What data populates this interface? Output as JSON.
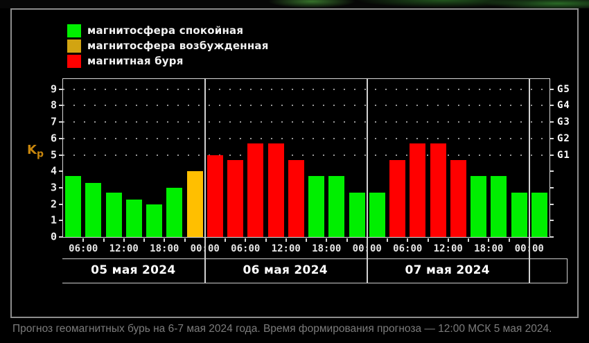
{
  "legend": {
    "items": [
      {
        "label": "магнитосфера спокойная",
        "color": "#00ef00"
      },
      {
        "label": "магнитосфера возбужденная",
        "color": "#d2a411"
      },
      {
        "label": "магнитная буря",
        "color": "#ff0000"
      }
    ]
  },
  "chart_data": {
    "type": "bar",
    "ylabel": "Kp",
    "ylim": [
      0,
      9.6
    ],
    "y_ticks": [
      0,
      1,
      2,
      3,
      4,
      5,
      6,
      7,
      8,
      9
    ],
    "grid": "dotted horizontal lines at storm levels Kp 5-9",
    "g_levels": [
      {
        "kp": 5,
        "label": "G1"
      },
      {
        "kp": 6,
        "label": "G2"
      },
      {
        "kp": 7,
        "label": "G3"
      },
      {
        "kp": 8,
        "label": "G4"
      },
      {
        "kp": 9,
        "label": "G5"
      }
    ],
    "hours_per_bar": 3,
    "time_labels": [
      "06:00",
      "12:00",
      "18:00",
      "00:00",
      "06:00",
      "12:00",
      "18:00",
      "00:00",
      "06:00",
      "12:00",
      "18:00",
      "00:00"
    ],
    "level_colors": {
      "quiet": "#00ef00",
      "excited": "#ffbf00",
      "storm": "#ff0000"
    },
    "sections": [
      {
        "date": "05 мая 2024",
        "bars": [
          {
            "value": 3.7,
            "level": "quiet"
          },
          {
            "value": 3.3,
            "level": "quiet"
          },
          {
            "value": 2.7,
            "level": "quiet"
          },
          {
            "value": 2.3,
            "level": "quiet"
          },
          {
            "value": 2.0,
            "level": "quiet"
          },
          {
            "value": 3.0,
            "level": "quiet"
          },
          {
            "value": 4.0,
            "level": "excited"
          }
        ]
      },
      {
        "date": "06 мая 2024",
        "bars": [
          {
            "value": 5.0,
            "level": "storm"
          },
          {
            "value": 4.7,
            "level": "storm"
          },
          {
            "value": 5.7,
            "level": "storm"
          },
          {
            "value": 5.7,
            "level": "storm"
          },
          {
            "value": 4.7,
            "level": "storm"
          },
          {
            "value": 3.7,
            "level": "quiet"
          },
          {
            "value": 3.7,
            "level": "quiet"
          },
          {
            "value": 2.7,
            "level": "quiet"
          }
        ]
      },
      {
        "date": "07 мая 2024",
        "bars": [
          {
            "value": 2.7,
            "level": "quiet"
          },
          {
            "value": 4.7,
            "level": "storm"
          },
          {
            "value": 5.7,
            "level": "storm"
          },
          {
            "value": 5.7,
            "level": "storm"
          },
          {
            "value": 4.7,
            "level": "storm"
          },
          {
            "value": 3.7,
            "level": "quiet"
          },
          {
            "value": 3.7,
            "level": "quiet"
          },
          {
            "value": 2.7,
            "level": "quiet"
          }
        ]
      },
      {
        "date": "",
        "bars": [
          {
            "value": 2.7,
            "level": "quiet"
          }
        ]
      }
    ]
  },
  "caption": "Прогноз геомагнитных бурь на 6-7 мая 2024 года. Время формирования прогноза — 12:00 МСК 5 мая 2024."
}
